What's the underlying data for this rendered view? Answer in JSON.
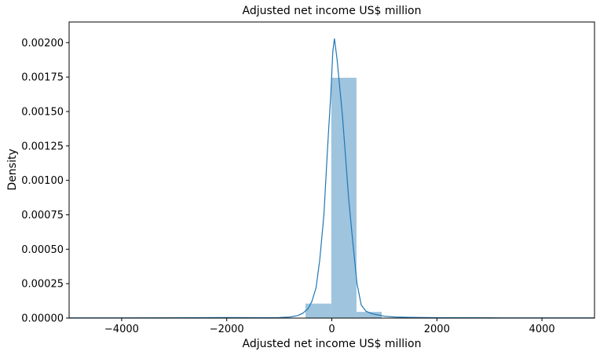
{
  "chart_data": {
    "type": "histogram",
    "title": "Adjusted net income US$ million",
    "xlabel": "Adjusted net income US$ million",
    "ylabel": "Density",
    "xlim": [
      -5000,
      5000
    ],
    "ylim": [
      0,
      0.00215
    ],
    "xticks": [
      -4000,
      -2000,
      0,
      2000,
      4000
    ],
    "xtick_labels": [
      "−4000",
      "−2000",
      "0",
      "2000",
      "4000"
    ],
    "yticks": [
      0,
      0.00025,
      0.0005,
      0.00075,
      0.001,
      0.00125,
      0.0015,
      0.00175,
      0.002
    ],
    "ytick_labels": [
      "0.00000",
      "0.00025",
      "0.00050",
      "0.00075",
      "0.00100",
      "0.00125",
      "0.00150",
      "0.00175",
      "0.00200"
    ],
    "grid": false,
    "bars": [
      {
        "x0": -500,
        "x1": -10,
        "value": 0.000105
      },
      {
        "x0": -10,
        "x1": 470,
        "value": 0.001745
      },
      {
        "x0": 470,
        "x1": 950,
        "value": 4.5e-05
      }
    ],
    "bar_color": "#9ec4de",
    "kde_color": "#1f77b4",
    "kde": {
      "x": [
        -5000,
        -4000,
        -3000,
        -2000,
        -1400,
        -1000,
        -800,
        -650,
        -550,
        -450,
        -380,
        -300,
        -230,
        -150,
        -80,
        -20,
        20,
        50,
        100,
        150,
        200,
        260,
        320,
        400,
        480,
        560,
        650,
        750,
        850,
        1000,
        1200,
        1500,
        2000,
        3000,
        4000,
        5000
      ],
      "y": [
        1.5e-06,
        1.5e-06,
        2.5e-06,
        3.5e-06,
        3e-06,
        4e-06,
        8e-06,
        1.8e-05,
        3.5e-05,
        7e-05,
        0.00012,
        0.00022,
        0.00042,
        0.00075,
        0.00124,
        0.00162,
        0.00194,
        0.00203,
        0.00188,
        0.00168,
        0.00148,
        0.00118,
        0.00087,
        0.00055,
        0.00025,
        9.5e-05,
        5e-05,
        3.4e-05,
        2.5e-05,
        1.4e-05,
        8e-06,
        5e-06,
        3e-06,
        2e-06,
        1.5e-06,
        1.5e-06
      ]
    }
  }
}
